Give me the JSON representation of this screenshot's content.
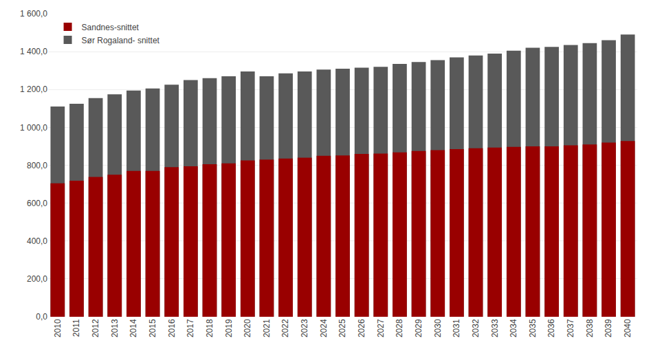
{
  "chart_data": {
    "type": "bar",
    "categories": [
      "2010",
      "2011",
      "2012",
      "2013",
      "2014",
      "2015",
      "2016",
      "2017",
      "2018",
      "2019",
      "2020",
      "2021",
      "2022",
      "2023",
      "2024",
      "2025",
      "2026",
      "2027",
      "2028",
      "2029",
      "2030",
      "2031",
      "2032",
      "2033",
      "2034",
      "2035",
      "2036",
      "2037",
      "2038",
      "2039",
      "2040"
    ],
    "series": [
      {
        "name": "Sør Rogaland- snittet",
        "color": "#595959",
        "values": [
          1110,
          1125,
          1155,
          1175,
          1195,
          1205,
          1225,
          1250,
          1260,
          1270,
          1295,
          1270,
          1285,
          1295,
          1305,
          1310,
          1315,
          1320,
          1335,
          1345,
          1355,
          1370,
          1380,
          1390,
          1405,
          1420,
          1425,
          1435,
          1445,
          1460,
          1490
        ]
      },
      {
        "name": "Sandnes-snittet",
        "color": "#990000",
        "values": [
          705,
          718,
          738,
          750,
          770,
          770,
          790,
          795,
          805,
          810,
          825,
          830,
          835,
          840,
          850,
          852,
          860,
          862,
          868,
          875,
          880,
          885,
          890,
          893,
          897,
          900,
          900,
          905,
          910,
          920,
          928
        ]
      }
    ],
    "ylim": [
      0,
      1600
    ],
    "yticks": [
      {
        "value": 0,
        "label": "0,0"
      },
      {
        "value": 200,
        "label": "200,0"
      },
      {
        "value": 400,
        "label": "400,0"
      },
      {
        "value": 600,
        "label": "600,0"
      },
      {
        "value": 800,
        "label": "800,0"
      },
      {
        "value": 1000,
        "label": "1 000,0"
      },
      {
        "value": 1200,
        "label": "1 200,0"
      },
      {
        "value": 1400,
        "label": "1 400,0"
      },
      {
        "value": 1600,
        "label": "1 600,0"
      }
    ],
    "grid": true,
    "legend": "upper left"
  }
}
